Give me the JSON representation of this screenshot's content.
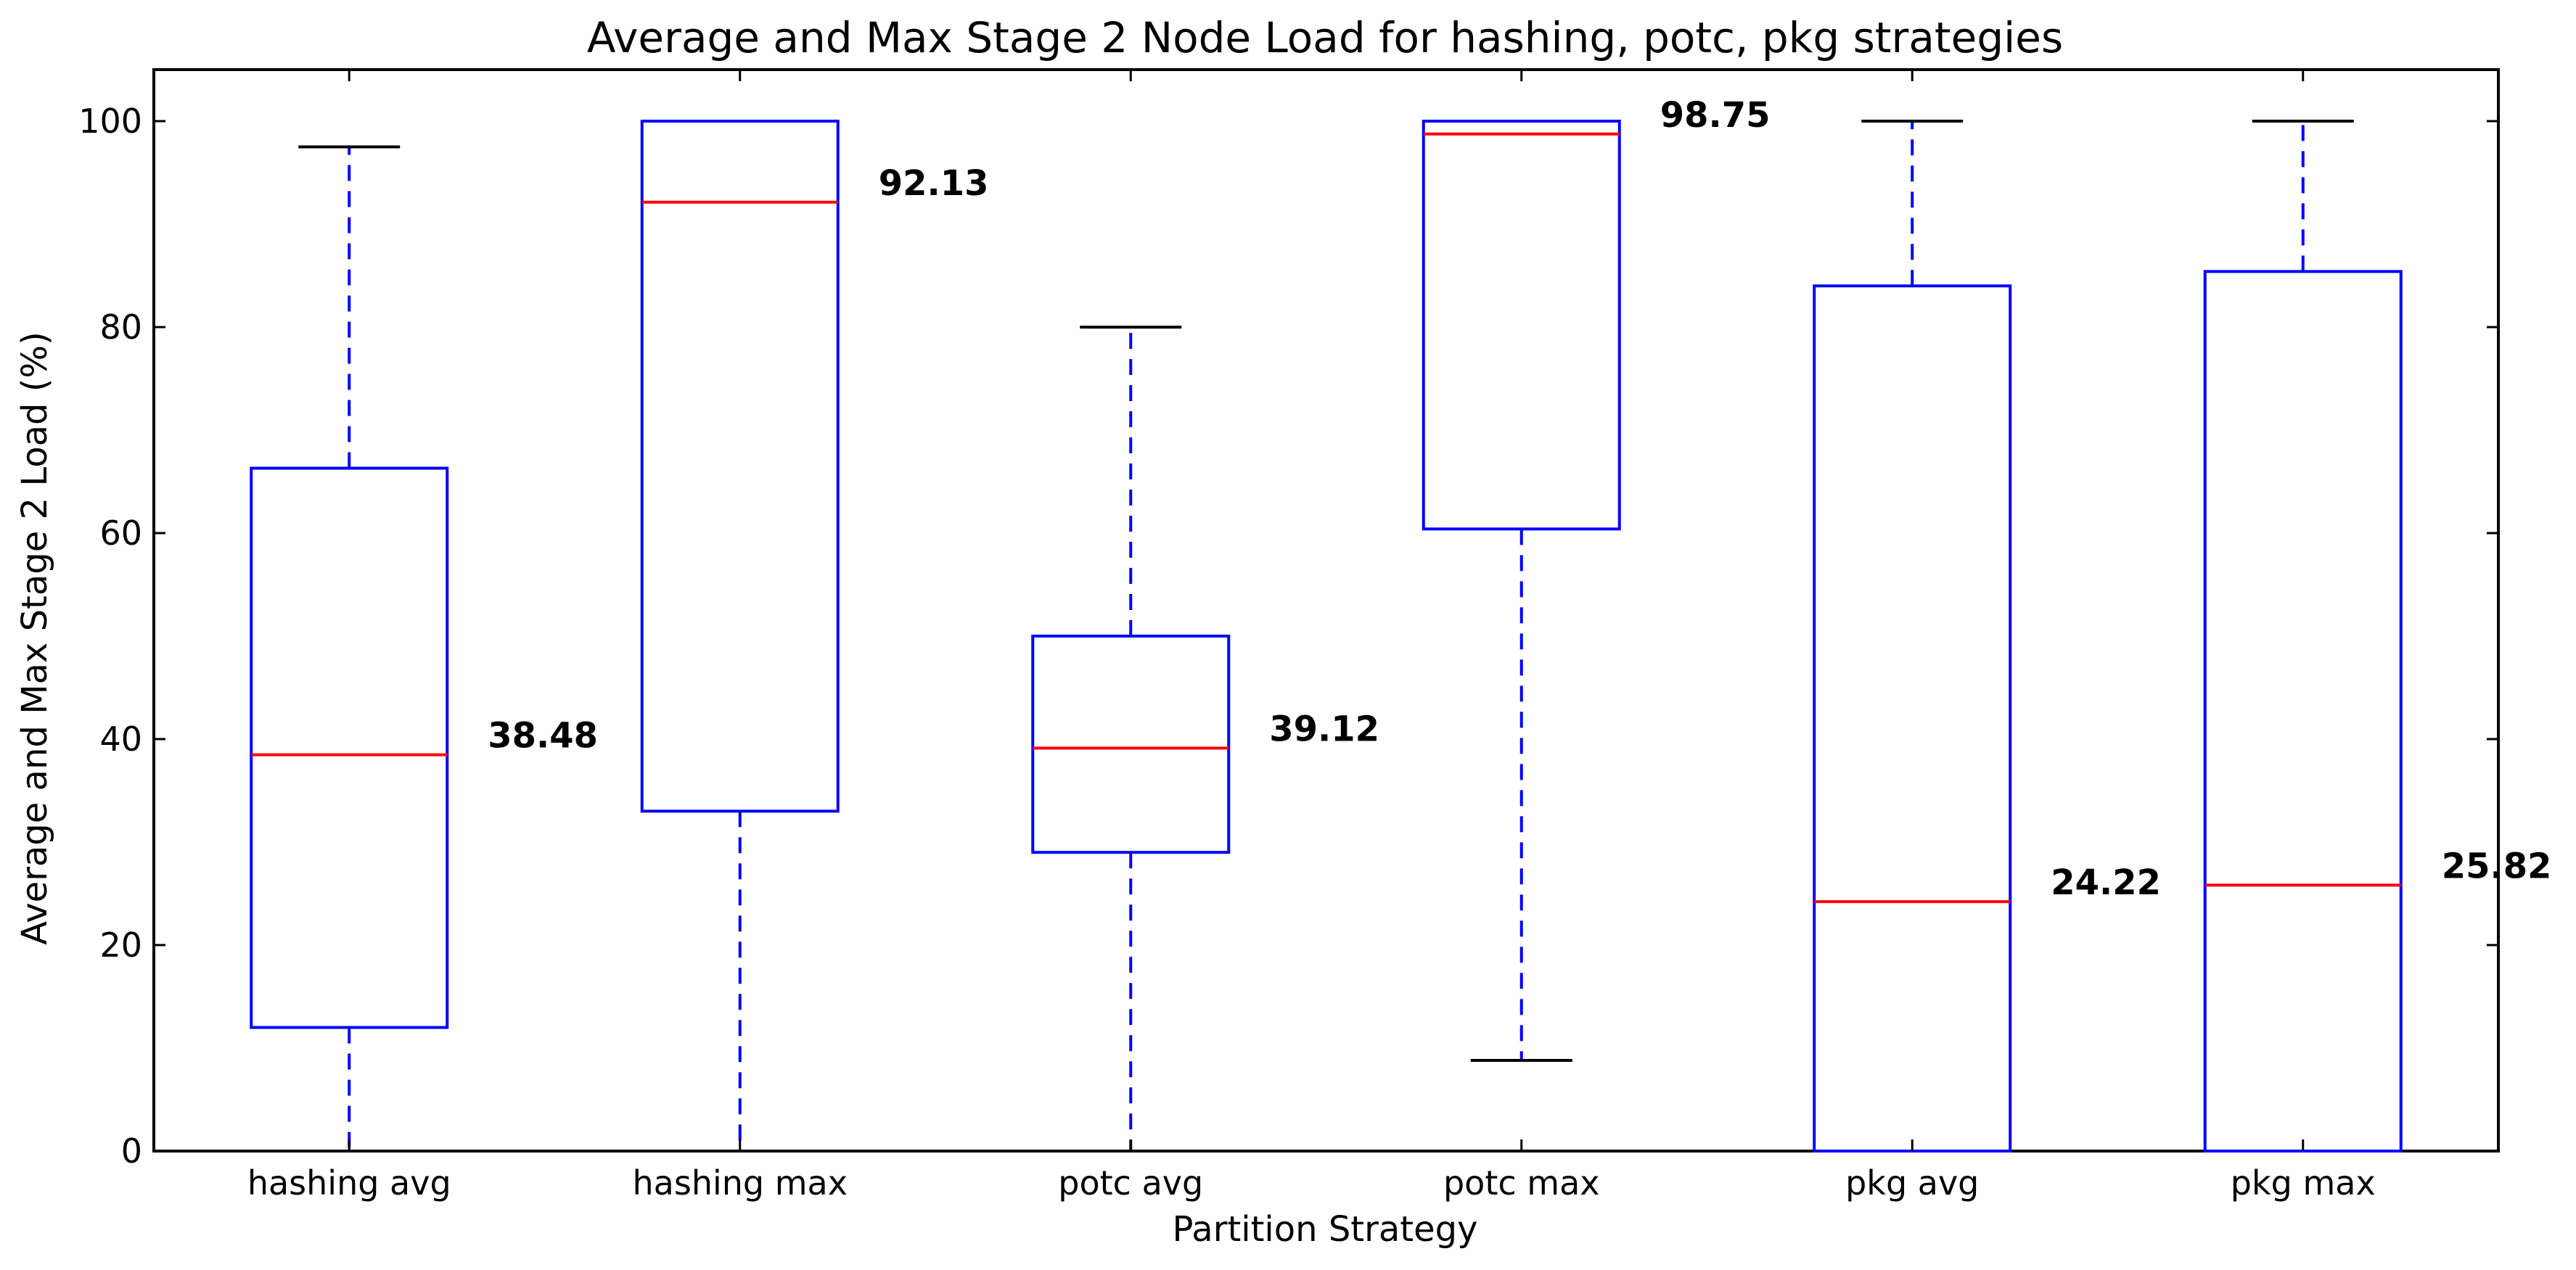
{
  "chart_data": {
    "type": "box",
    "title": "Average and Max Stage 2 Node Load for hashing, potc, pkg strategies",
    "xlabel": "Partition Strategy",
    "ylabel": "Average and Max Stage 2 Load (%)",
    "ylim": [
      0,
      105
    ],
    "yticks": [
      0,
      20,
      40,
      60,
      80,
      100
    ],
    "grid": false,
    "legend": "none",
    "colors": {
      "box": "#0000ff",
      "median": "#ff0000",
      "cap": "#000000"
    },
    "boxes": [
      {
        "category": "hashing avg",
        "whisker_low": 0,
        "q1": 12.0,
        "median": 38.48,
        "q3": 66.3,
        "whisker_high": 97.5,
        "median_label": "38.48"
      },
      {
        "category": "hashing max",
        "whisker_low": 0,
        "q1": 33.0,
        "median": 92.13,
        "q3": 100,
        "whisker_high": 100,
        "median_label": "92.13"
      },
      {
        "category": "potc avg",
        "whisker_low": 0,
        "q1": 29.0,
        "median": 39.12,
        "q3": 50.0,
        "whisker_high": 80.0,
        "median_label": "39.12"
      },
      {
        "category": "potc max",
        "whisker_low": 8.8,
        "q1": 60.4,
        "median": 98.75,
        "q3": 100,
        "whisker_high": 100,
        "median_label": "98.75"
      },
      {
        "category": "pkg avg",
        "whisker_low": 0,
        "q1": 0,
        "median": 24.22,
        "q3": 84.0,
        "whisker_high": 100,
        "median_label": "24.22"
      },
      {
        "category": "pkg max",
        "whisker_low": 0,
        "q1": 0,
        "median": 25.82,
        "q3": 85.4,
        "whisker_high": 100,
        "median_label": "25.82"
      }
    ]
  }
}
